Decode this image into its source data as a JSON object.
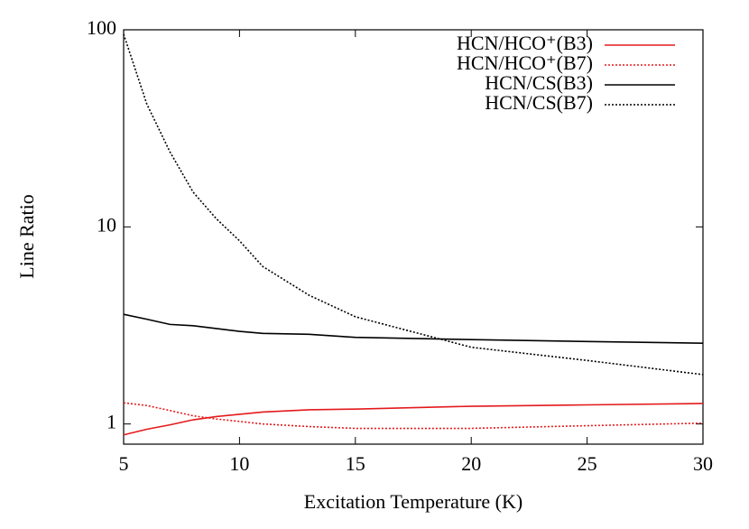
{
  "chart_data": {
    "type": "line",
    "x_label": "Excitation Temperature (K)",
    "y_label": "Line Ratio",
    "x": [
      5,
      6,
      7,
      8,
      9,
      10,
      11,
      13,
      15,
      20,
      25,
      30
    ],
    "series": [
      {
        "name": "HCN/HCO⁺(B3)",
        "color": "#e41a1c",
        "dash": false,
        "values": [
          0.88,
          0.94,
          0.99,
          1.05,
          1.09,
          1.12,
          1.15,
          1.18,
          1.19,
          1.23,
          1.25,
          1.27
        ]
      },
      {
        "name": "HCN/HCO⁺(B7)",
        "color": "#e41a1c",
        "dash": true,
        "values": [
          1.28,
          1.24,
          1.17,
          1.1,
          1.06,
          1.03,
          1.0,
          0.97,
          0.95,
          0.95,
          0.98,
          1.01
        ]
      },
      {
        "name": "HCN/CS(B3)",
        "color": "#000000",
        "dash": false,
        "values": [
          3.6,
          3.4,
          3.2,
          3.15,
          3.05,
          2.95,
          2.88,
          2.85,
          2.75,
          2.68,
          2.62,
          2.57
        ]
      },
      {
        "name": "HCN/CS(B7)",
        "color": "#000000",
        "dash": true,
        "values": [
          95,
          42,
          24,
          15,
          11,
          8.5,
          6.3,
          4.5,
          3.5,
          2.45,
          2.1,
          1.78
        ]
      }
    ],
    "xlim": [
      5,
      30
    ],
    "xticks": [
      5,
      10,
      15,
      20,
      25,
      30
    ],
    "ylim": [
      0.79,
      100
    ],
    "yticks": [
      1,
      10,
      100
    ],
    "y_log": true,
    "legend": "top-right"
  }
}
